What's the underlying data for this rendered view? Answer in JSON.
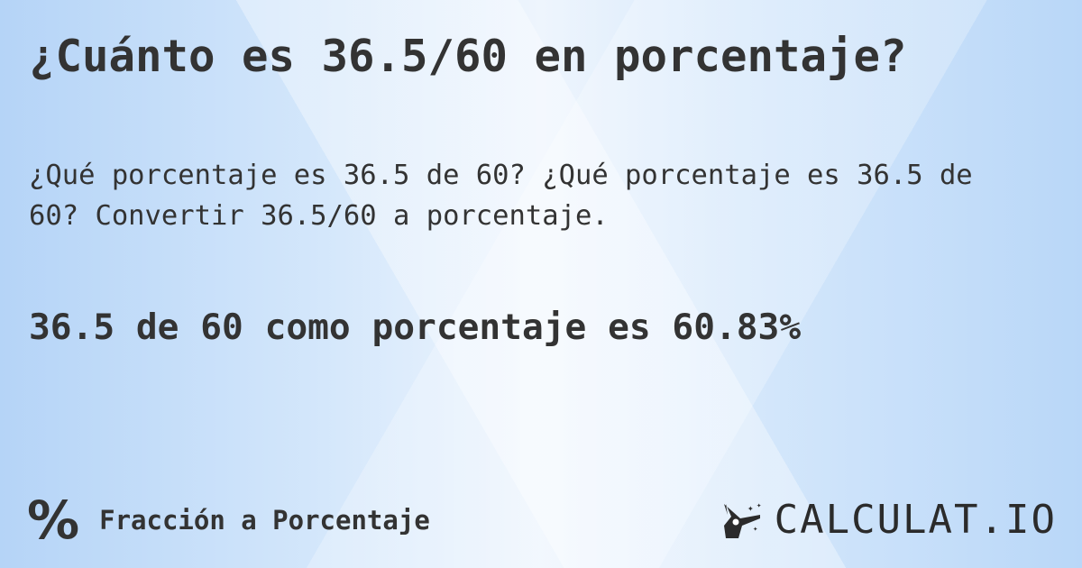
{
  "title": "¿Cuánto es 36.5/60 en porcentaje?",
  "description": "¿Qué porcentaje es 36.5 de 60? ¿Qué porcentaje es 36.5 de 60? Convertir 36.5/60 a porcentaje.",
  "result": "36.5 de 60 como porcentaje es 60.83%",
  "category": {
    "icon": "percent-icon",
    "symbol": "%",
    "label": "Fracción a Porcentaje"
  },
  "logo": {
    "icon": "magic-wand-hand-icon",
    "text": "CALCULAT.IO"
  }
}
